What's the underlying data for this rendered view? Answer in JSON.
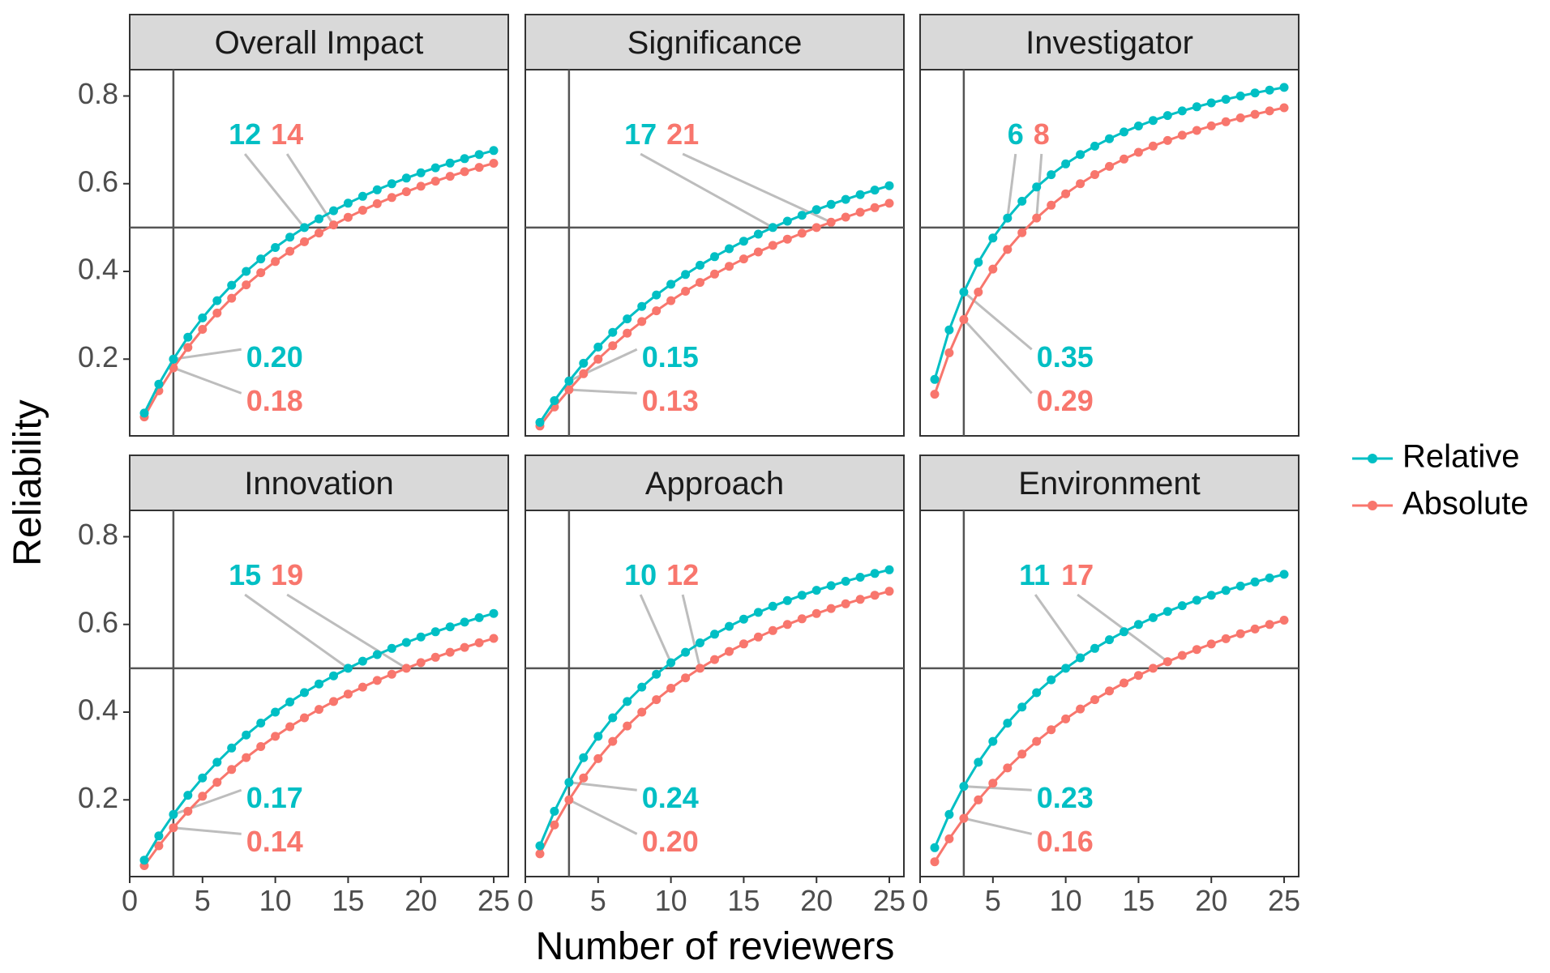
{
  "chart_data": {
    "type": "line",
    "xlabel": "Number of reviewers",
    "ylabel": "Reliability",
    "xlim": [
      0,
      26
    ],
    "ylim": [
      0.025,
      0.86
    ],
    "x_ticks": [
      0,
      5,
      10,
      15,
      20,
      25
    ],
    "y_ticks": [
      0.2,
      0.4,
      0.6,
      0.8
    ],
    "y_tick_labels": [
      "0.2",
      "0.4",
      "0.6",
      "0.8"
    ],
    "reference_lines": {
      "vertical_x": 3,
      "horizontal_y": 0.5
    },
    "grid": false,
    "legend_position": "right",
    "legend": [
      {
        "name": "Relative",
        "color": "#00BFC4"
      },
      {
        "name": "Absolute",
        "color": "#F8766D"
      }
    ],
    "x": [
      1,
      2,
      3,
      4,
      5,
      6,
      7,
      8,
      9,
      10,
      11,
      12,
      13,
      14,
      15,
      16,
      17,
      18,
      19,
      20,
      21,
      22,
      23,
      24,
      25
    ],
    "panels": [
      {
        "title": "Overall Impact",
        "single_reviewer": {
          "Relative": 0.0769,
          "Absolute": 0.0682
        },
        "labels": {
          "n_for_half": {
            "Relative": "12",
            "Absolute": "14"
          },
          "at_three": {
            "Relative": "0.20",
            "Absolute": "0.18"
          }
        }
      },
      {
        "title": "Significance",
        "single_reviewer": {
          "Relative": 0.0556,
          "Absolute": 0.0476
        },
        "labels": {
          "n_for_half": {
            "Relative": "17",
            "Absolute": "21"
          },
          "at_three": {
            "Relative": "0.15",
            "Absolute": "0.13"
          }
        }
      },
      {
        "title": "Investigator",
        "single_reviewer": {
          "Relative": 0.1538,
          "Absolute": 0.12
        },
        "labels": {
          "n_for_half": {
            "Relative": "6",
            "Absolute": "8"
          },
          "at_three": {
            "Relative": "0.35",
            "Absolute": "0.29"
          }
        }
      },
      {
        "title": "Innovation",
        "single_reviewer": {
          "Relative": 0.0625,
          "Absolute": 0.05
        },
        "labels": {
          "n_for_half": {
            "Relative": "15",
            "Absolute": "19"
          },
          "at_three": {
            "Relative": "0.17",
            "Absolute": "0.14"
          }
        }
      },
      {
        "title": "Approach",
        "single_reviewer": {
          "Relative": 0.0952,
          "Absolute": 0.0769
        },
        "labels": {
          "n_for_half": {
            "Relative": "10",
            "Absolute": "12"
          },
          "at_three": {
            "Relative": "0.24",
            "Absolute": "0.20"
          }
        }
      },
      {
        "title": "Environment",
        "single_reviewer": {
          "Relative": 0.0909,
          "Absolute": 0.0588
        },
        "labels": {
          "n_for_half": {
            "Relative": "11",
            "Absolute": "17"
          },
          "at_three": {
            "Relative": "0.23",
            "Absolute": "0.16"
          }
        }
      }
    ]
  }
}
